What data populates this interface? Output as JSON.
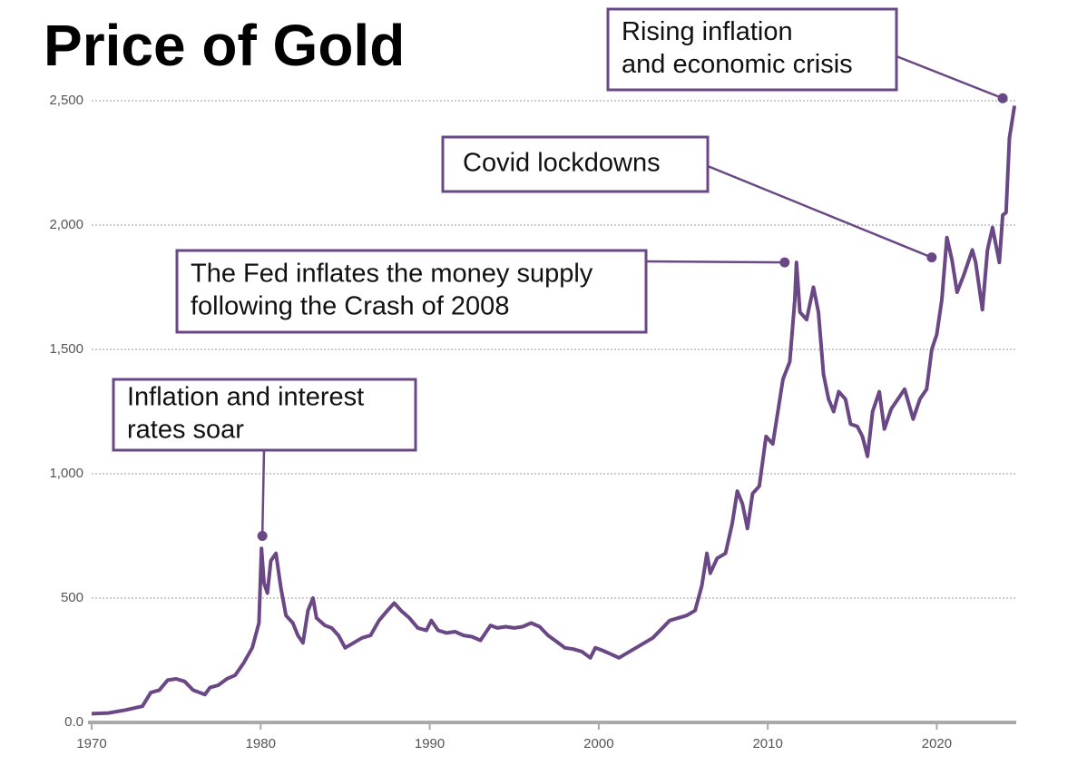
{
  "chart_data": {
    "type": "line",
    "title": "Price of Gold",
    "x": [
      1970,
      1971,
      1972,
      1973,
      1973.5,
      1974,
      1974.5,
      1975,
      1975.5,
      1976,
      1976.7,
      1977,
      1977.5,
      1978,
      1978.5,
      1979,
      1979.5,
      1979.9,
      1980.05,
      1980.2,
      1980.4,
      1980.6,
      1980.9,
      1981.2,
      1981.5,
      1981.9,
      1982.2,
      1982.5,
      1982.8,
      1983.1,
      1983.3,
      1983.8,
      1984.2,
      1984.6,
      1985,
      1985.5,
      1986,
      1986.5,
      1987,
      1987.5,
      1987.9,
      1988.3,
      1988.8,
      1989.3,
      1989.8,
      1990.1,
      1990.5,
      1991,
      1991.5,
      1992,
      1992.5,
      1993,
      1993.6,
      1994,
      1994.5,
      1995,
      1995.5,
      1996,
      1996.5,
      1997,
      1997.6,
      1998,
      1998.5,
      1999,
      1999.5,
      1999.8,
      2000.2,
      2000.7,
      2001.2,
      2001.7,
      2002.2,
      2002.7,
      2003.2,
      2003.7,
      2004.2,
      2004.7,
      2005.2,
      2005.7,
      2006.1,
      2006.4,
      2006.6,
      2007,
      2007.5,
      2007.9,
      2008.2,
      2008.5,
      2008.8,
      2009.1,
      2009.5,
      2009.9,
      2010.3,
      2010.6,
      2010.9,
      2011.3,
      2011.6,
      2011.7,
      2011.9,
      2012.3,
      2012.7,
      2013,
      2013.3,
      2013.6,
      2013.9,
      2014.2,
      2014.6,
      2014.9,
      2015.3,
      2015.6,
      2015.9,
      2016.2,
      2016.6,
      2016.9,
      2017.3,
      2017.7,
      2018.1,
      2018.6,
      2019,
      2019.4,
      2019.7,
      2020,
      2020.3,
      2020.6,
      2020.9,
      2021.2,
      2021.6,
      2022.1,
      2022.3,
      2022.7,
      2023,
      2023.3,
      2023.7,
      2023.9,
      2024.1,
      2024.3,
      2024.6
    ],
    "series": [
      {
        "name": "Gold price",
        "color": "#6a4785",
        "values": [
          35,
          38,
          50,
          65,
          120,
          130,
          170,
          175,
          165,
          130,
          112,
          140,
          150,
          175,
          190,
          240,
          300,
          400,
          700,
          560,
          520,
          650,
          680,
          540,
          430,
          400,
          350,
          320,
          450,
          500,
          420,
          390,
          380,
          350,
          300,
          320,
          340,
          350,
          410,
          450,
          480,
          450,
          420,
          380,
          370,
          410,
          370,
          360,
          365,
          350,
          345,
          330,
          390,
          380,
          385,
          380,
          385,
          400,
          385,
          350,
          320,
          300,
          295,
          285,
          260,
          300,
          290,
          275,
          260,
          280,
          300,
          320,
          340,
          375,
          410,
          420,
          430,
          450,
          550,
          680,
          600,
          660,
          680,
          800,
          930,
          880,
          780,
          920,
          950,
          1150,
          1120,
          1250,
          1380,
          1450,
          1700,
          1850,
          1650,
          1620,
          1750,
          1650,
          1400,
          1300,
          1250,
          1330,
          1300,
          1200,
          1190,
          1150,
          1070,
          1250,
          1330,
          1180,
          1260,
          1300,
          1340,
          1220,
          1300,
          1340,
          1500,
          1560,
          1700,
          1950,
          1860,
          1730,
          1800,
          1900,
          1850,
          1660,
          1900,
          1990,
          1850,
          2040,
          2050,
          2350,
          2480
        ]
      }
    ],
    "xlim": [
      1970,
      2024.7
    ],
    "xticks": [
      1970,
      1980,
      1990,
      2000,
      2010,
      2020
    ],
    "ylim": [
      0,
      2500
    ],
    "yticks": [
      {
        "value": 0,
        "label": "0.0"
      },
      500,
      {
        "value": 1000,
        "label": "1,000"
      },
      {
        "value": 1500,
        "label": "1,500"
      },
      {
        "value": 2000,
        "label": "2,000"
      },
      {
        "value": 2500,
        "label": "2,500"
      }
    ],
    "grid": true,
    "annotations": [
      {
        "lines": [
          "Inflation and interest",
          "rates soar"
        ],
        "x": 1980.1,
        "y": 750
      },
      {
        "lines": [
          "The Fed inflates the money supply",
          "following the Crash of 2008"
        ],
        "x": 2011,
        "y": 1850
      },
      {
        "lines": [
          "Covid lockdowns"
        ],
        "x": 2019.7,
        "y": 1870
      },
      {
        "lines": [
          "Rising inflation",
          "and economic crisis"
        ],
        "x": 2023.9,
        "y": 2510
      }
    ]
  }
}
